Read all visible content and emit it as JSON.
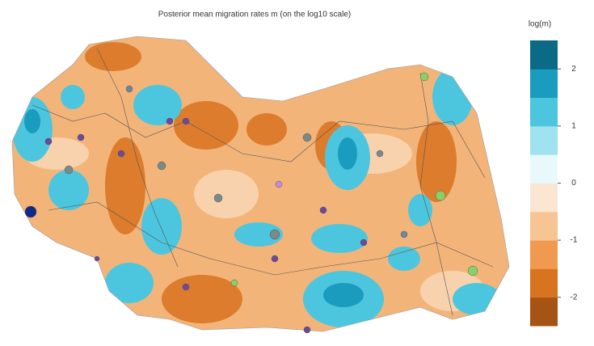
{
  "title": "Posterior mean migration rates m (on the log10 scale)",
  "colorbar": {
    "label": "log(m)",
    "lim": [
      -2.5,
      2.5
    ],
    "ticks": [
      2,
      1,
      0,
      -1,
      -2
    ],
    "colors": [
      "#a65414",
      "#d8741f",
      "#f09a50",
      "#f7c594",
      "#fbe6d2",
      "#e9f8fb",
      "#9fe3f0",
      "#4cc6df",
      "#1a9cbf",
      "#0b6a86"
    ]
  }
}
